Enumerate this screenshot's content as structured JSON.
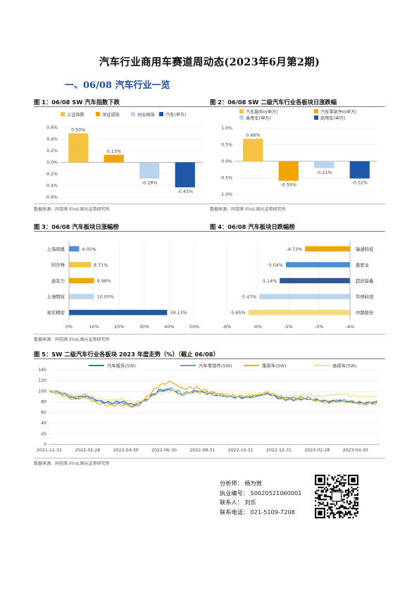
{
  "doc": {
    "title": "汽车行业商用车赛道周动态(2023年6月第2期)",
    "section": "一、06/08 汽车行业一览"
  },
  "source_note": "数据来源：同花顺 iFind,国元证券研究所",
  "fig1": {
    "title": "图 1：06/08 SW 汽车指数下跌",
    "chart_data": {
      "type": "bar",
      "categories": [
        "上证指数",
        "深证成指",
        "创业板指",
        "汽车(申万)"
      ],
      "values": [
        0.5,
        0.13,
        -0.28,
        -0.43
      ],
      "value_labels": [
        "0.50%",
        "0.13%",
        "-0.28%",
        "-0.43%"
      ],
      "colors": [
        "#f5c242",
        "#f0a500",
        "#b8d4ee",
        "#1f58a8"
      ],
      "ylim": [
        -0.6,
        0.6
      ],
      "yticks": [
        0.6,
        0.4,
        0.2,
        0.0,
        -0.2,
        -0.4,
        -0.6
      ],
      "ytick_labels": [
        "0.6%",
        "0.4%",
        "0.2%",
        "0.0%",
        "-0.2%",
        "-0.4%",
        "-0.6%"
      ],
      "legend_position": "top"
    }
  },
  "fig2": {
    "title": "图 2：06/08 SW 二级汽车行业各板块日涨跌幅",
    "chart_data": {
      "type": "bar",
      "categories": [
        "汽车服务II(申万)",
        "汽车零部件II(申万)",
        "乘用车(申万)",
        "商用车(申万)"
      ],
      "values": [
        0.68,
        -0.59,
        -0.21,
        -0.52
      ],
      "value_labels": [
        "0.68%",
        "-0.59%",
        "-0.21%",
        "-0.52%"
      ],
      "colors": [
        "#f5c242",
        "#f0a500",
        "#b8d4ee",
        "#1f58a8"
      ],
      "ylim": [
        -1.0,
        1.0
      ],
      "yticks": [
        1.0,
        0.5,
        0.0,
        -0.5,
        -1.0
      ],
      "ytick_labels": [
        "1.0%",
        "0.5%",
        "0.0%",
        "-0.5%",
        "-1.0%"
      ],
      "legend_position": "top"
    }
  },
  "fig3": {
    "title": "图 3：06/08 汽车板块日涨幅榜",
    "chart_data": {
      "type": "bar",
      "orientation": "horizontal",
      "categories": [
        "上海凤凰",
        "阿尔特",
        "迪生力",
        "上海物贸",
        "易实精密"
      ],
      "values": [
        4.05,
        8.71,
        9.98,
        10.0,
        39.13
      ],
      "value_labels": [
        "4.05%",
        "8.71%",
        "9.98%",
        "10.00%",
        "39.13%"
      ],
      "colors": [
        "#4a8fd6",
        "#f5c242",
        "#f0a500",
        "#b8d4ee",
        "#1f58a8"
      ],
      "xlim": [
        0,
        50
      ],
      "xticks": [
        0,
        10,
        20,
        30,
        40,
        50
      ],
      "xtick_labels": [
        "0%",
        "10%",
        "20%",
        "30%",
        "40%",
        "50%"
      ]
    }
  },
  "fig4": {
    "title": "图 4：06/08 汽车板块日跌幅榜",
    "chart_data": {
      "type": "bar",
      "orientation": "horizontal",
      "categories": [
        "瑞通科技",
        "鑫宏业",
        "超达装备",
        "华纬科技",
        "中路股份"
      ],
      "values": [
        -4.73,
        -5.04,
        -5.14,
        -5.47,
        -5.65
      ],
      "value_labels": [
        "-4.73%",
        "-5.04%",
        "-5.14%",
        "-5.47%",
        "-5.65%"
      ],
      "colors": [
        "#f0a500",
        "#4a8fd6",
        "#2e5597",
        "#b8d4ee",
        "#f8d97a"
      ],
      "xlim": [
        -6,
        -4
      ],
      "xticks": [
        -6,
        -5.5,
        -5,
        -4.5,
        -4
      ],
      "xtick_labels": [
        "-6%",
        "-6%",
        "-5%",
        "-5%",
        "-4%"
      ]
    }
  },
  "fig5": {
    "title": "图 5：SW 二级汽车行业各板块 2023 年度走势（%）（截止 06/08）",
    "chart_data": {
      "type": "line",
      "x_labels": [
        "2021-12-31",
        "2022-02-28",
        "2022-04-30",
        "2022-06-30",
        "2022-08-31",
        "2022-10-31",
        "2022-12-31",
        "2023-02-28",
        "2023-04-30"
      ],
      "ylim": [
        0,
        140
      ],
      "yticks": [
        0,
        20,
        40,
        60,
        80,
        100,
        120,
        140
      ],
      "ytick_labels": [
        "0",
        "20",
        "40",
        "60",
        "80",
        "100",
        "120",
        "140"
      ],
      "legend_position": "top",
      "series": [
        {
          "name": "汽车服务(SW)",
          "color": "#1f58a8",
          "values": [
            100,
            96,
            86,
            91,
            82,
            78,
            80,
            74,
            84,
            101,
            103,
            92,
            99,
            96,
            91,
            89,
            88,
            91,
            95,
            86,
            84,
            85,
            83,
            80,
            82,
            79,
            77,
            79
          ]
        },
        {
          "name": "汽车零部件(SW)",
          "color": "#4a8fd6",
          "values": [
            100,
            98,
            88,
            93,
            81,
            76,
            79,
            70,
            83,
            99,
            105,
            95,
            101,
            97,
            93,
            90,
            88,
            90,
            97,
            89,
            87,
            88,
            84,
            81,
            83,
            80,
            78,
            80
          ]
        },
        {
          "name": "乘用车(SW)",
          "color": "#f0a500",
          "values": [
            100,
            93,
            85,
            88,
            77,
            73,
            75,
            71,
            88,
            110,
            118,
            104,
            107,
            100,
            95,
            92,
            90,
            92,
            97,
            87,
            84,
            86,
            82,
            79,
            81,
            78,
            76,
            78
          ]
        },
        {
          "name": "商用车(SW)",
          "color": "#f8d97a",
          "values": [
            100,
            99,
            91,
            94,
            86,
            83,
            85,
            79,
            85,
            95,
            100,
            93,
            97,
            96,
            92,
            91,
            90,
            94,
            98,
            92,
            90,
            93,
            90,
            92,
            95,
            91,
            89,
            90
          ]
        }
      ]
    }
  },
  "contact": {
    "analyst": "分析师：  杨为敩",
    "license": "执业编号：  S0020521060001",
    "contact_person": "联系人：  刘乐",
    "phone": "联系电话：  021-5109-7208"
  }
}
